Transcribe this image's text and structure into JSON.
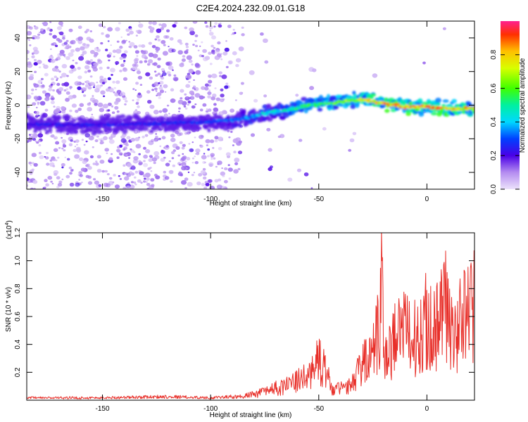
{
  "title": "C2E4.2024.232.09.01.G18",
  "chart_data": [
    {
      "type": "heatmap",
      "xlabel": "Height of straight line (km)",
      "ylabel": "Frequency (Hz)",
      "xlim": [
        -185,
        22
      ],
      "ylim": [
        -50,
        50
      ],
      "xticks": [
        -150,
        -100,
        -50,
        0
      ],
      "yticks": [
        -40,
        -20,
        0,
        20,
        40
      ],
      "colorbar": {
        "label": "Normalized spectral amplitude",
        "range": [
          0,
          1
        ],
        "ticks": [
          0.0,
          0.2,
          0.4,
          0.6,
          0.8
        ]
      },
      "ridge": {
        "x": [
          -185,
          -160,
          -130,
          -100,
          -85,
          -75,
          -65,
          -55,
          -45,
          -35,
          -28,
          -20,
          -10,
          0,
          10,
          20
        ],
        "y": [
          -11,
          -12,
          -11,
          -10,
          -8,
          -5,
          -3,
          0,
          1,
          3,
          3,
          1,
          -1,
          -1,
          -2,
          -2
        ],
        "amplitude": [
          0.25,
          0.25,
          0.25,
          0.3,
          0.35,
          0.45,
          0.5,
          0.55,
          0.6,
          0.7,
          0.75,
          0.85,
          0.9,
          0.9,
          0.85,
          0.8
        ]
      }
    },
    {
      "type": "line",
      "xlabel": "Height of straight line (km)",
      "ylabel": "SNR (10 * v/v)",
      "multiplier": "(x10",
      "multiplier_exp": "4",
      "multiplier_close": ")",
      "xlim": [
        -185,
        22
      ],
      "ylim": [
        0,
        1.2
      ],
      "xticks": [
        -150,
        -100,
        -50,
        0
      ],
      "yticks": [
        0.2,
        0.4,
        0.6,
        0.8,
        1.0,
        1.2
      ],
      "color": "#e8302a",
      "envelope": {
        "x": [
          -185,
          -150,
          -120,
          -100,
          -90,
          -80,
          -75,
          -65,
          -55,
          -50,
          -46,
          -44,
          -35,
          -30,
          -25,
          -22,
          -21,
          -19,
          -15,
          -10,
          -5,
          0,
          5,
          8,
          12,
          18,
          22
        ],
        "y": [
          0.02,
          0.02,
          0.03,
          0.02,
          0.03,
          0.06,
          0.09,
          0.15,
          0.25,
          0.42,
          0.3,
          0.1,
          0.15,
          0.35,
          0.55,
          0.7,
          1.15,
          0.45,
          0.62,
          0.72,
          0.65,
          0.82,
          0.8,
          1.0,
          0.62,
          0.9,
          0.98
        ]
      }
    }
  ]
}
